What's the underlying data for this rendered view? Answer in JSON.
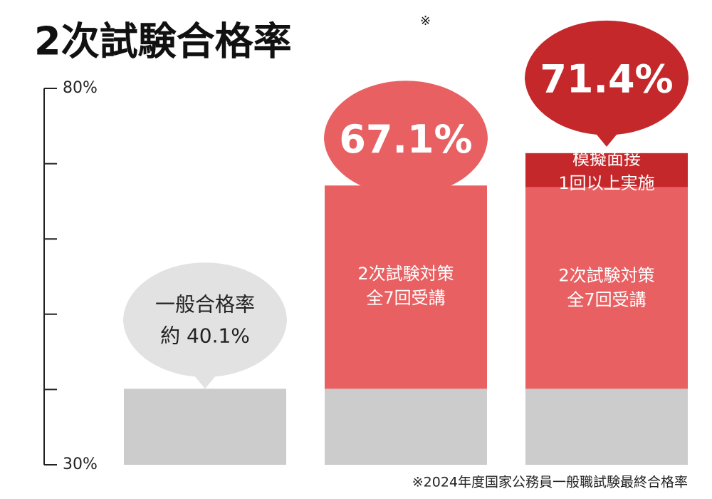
{
  "chart_data": {
    "type": "bar",
    "title": "2次試験合格率",
    "title_mark": "※",
    "footnote": "※2024年度国家公務員一般職試験最終合格率",
    "categories": [
      null,
      null,
      null
    ],
    "ylim": [
      30,
      80
    ],
    "yticks": [
      {
        "value": 30,
        "label": "30%"
      },
      {
        "value": 80,
        "label": "80%"
      }
    ],
    "minor_yticks": [
      40,
      50,
      60,
      70
    ],
    "series": [
      {
        "color": "#cccccc",
        "bubble_color": "#e2e2e2",
        "values": [
          40.1,
          40.1,
          40.1
        ],
        "value_labels": [
          "約 40.1%",
          null,
          null
        ],
        "annotations": [
          [
            "一般合格率"
          ],
          null,
          null
        ]
      },
      {
        "color": "#e86062",
        "bubble_color": "#e86062",
        "values": [
          null,
          67.1,
          66.9
        ],
        "value_labels": [
          null,
          "67.1%",
          null
        ],
        "annotations": [
          null,
          [
            "2次試験対策",
            "全7回受講"
          ],
          [
            "2次試験対策",
            "全7回受講"
          ]
        ]
      },
      {
        "color": "#c4282b",
        "bubble_color": "#c4282b",
        "values": [
          null,
          null,
          71.4
        ],
        "value_labels": [
          null,
          null,
          "71.4%"
        ],
        "annotations": [
          null,
          null,
          [
            "模擬面接",
            "1回以上実施"
          ]
        ]
      }
    ]
  }
}
